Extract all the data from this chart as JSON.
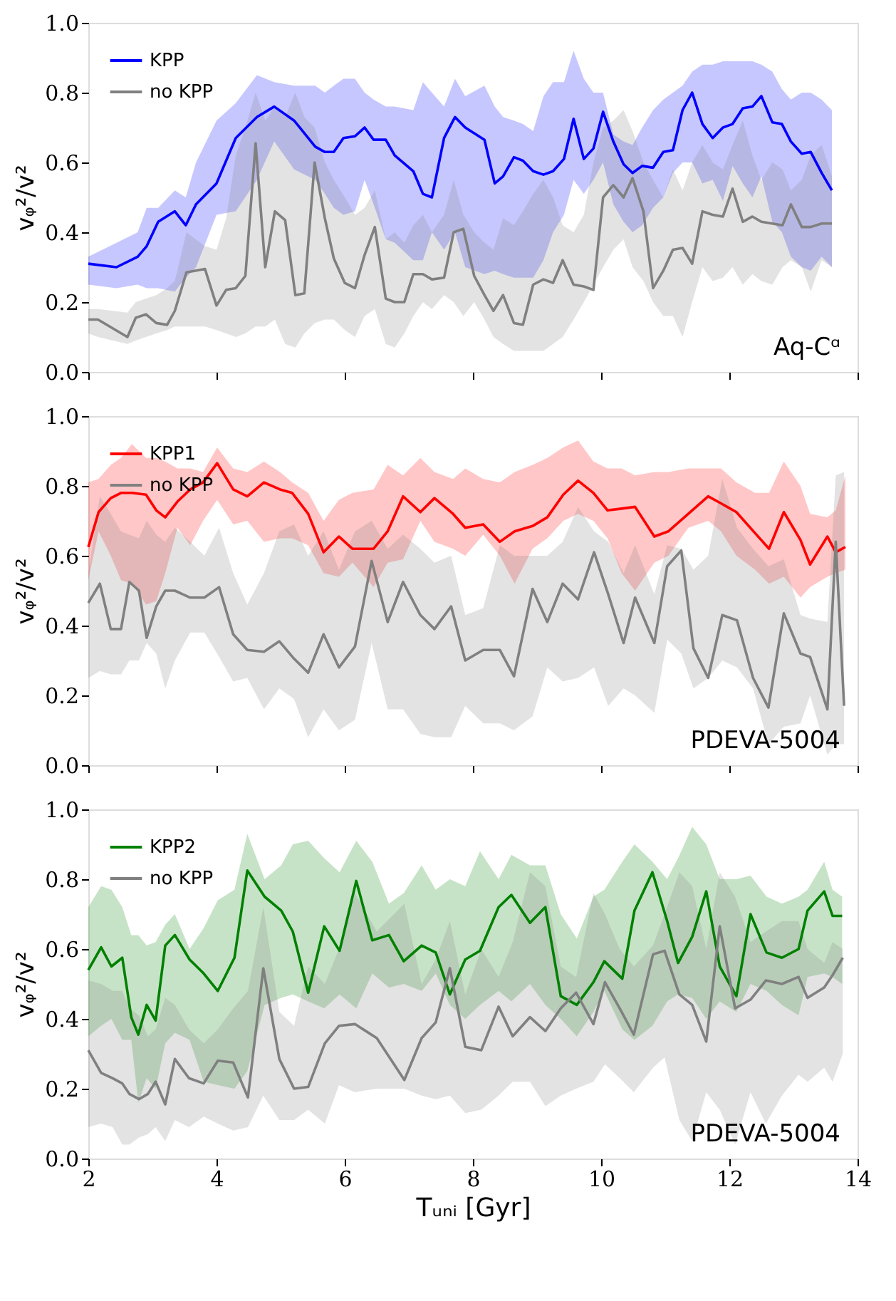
{
  "chart_data": [
    {
      "type": "line",
      "ylabel": "vᵩ²/v²",
      "xlim": [
        2,
        14
      ],
      "xticks": [
        2,
        4,
        6,
        8,
        10,
        12,
        14
      ],
      "ylim": [
        0,
        1
      ],
      "yticks": [
        {
          "value": 0,
          "label": "0.0"
        },
        {
          "value": 0.2,
          "label": "0.2"
        },
        {
          "value": 0.4,
          "label": "0.4"
        },
        {
          "value": 0.6,
          "label": "0.6"
        },
        {
          "value": 0.8,
          "label": "0.8"
        },
        {
          "value": 1,
          "label": "1.0"
        }
      ],
      "tick_labels": "y",
      "grid": false,
      "legend": "top left",
      "annotations": [
        "Aq-Cᵅ"
      ],
      "series": [
        {
          "name": "KPP",
          "color": "#0000ff",
          "x": [
            2.0,
            2.44,
            2.77,
            2.91,
            3.09,
            3.35,
            3.52,
            3.68,
            4.0,
            4.3,
            4.63,
            4.9,
            5.21,
            5.54,
            5.69,
            5.83,
            5.98,
            6.16,
            6.31,
            6.45,
            6.64,
            6.78,
            7.07,
            7.22,
            7.36,
            7.55,
            7.72,
            7.88,
            8.18,
            8.34,
            8.47,
            8.64,
            8.78,
            8.94,
            9.1,
            9.25,
            9.42,
            9.57,
            9.73,
            9.88,
            10.03,
            10.19,
            10.35,
            10.49,
            10.64,
            10.81,
            10.97,
            11.12,
            11.27,
            11.42,
            11.58,
            11.74,
            11.9,
            12.05,
            12.21,
            12.36,
            12.5,
            12.67,
            12.82,
            12.96,
            13.13,
            13.27,
            13.44,
            13.6
          ],
          "values": [
            0.31,
            0.3,
            0.33,
            0.36,
            0.43,
            0.46,
            0.42,
            0.48,
            0.54,
            0.67,
            0.73,
            0.76,
            0.72,
            0.645,
            0.63,
            0.63,
            0.67,
            0.675,
            0.7,
            0.665,
            0.665,
            0.62,
            0.575,
            0.51,
            0.5,
            0.67,
            0.73,
            0.7,
            0.665,
            0.54,
            0.56,
            0.615,
            0.605,
            0.575,
            0.565,
            0.575,
            0.61,
            0.725,
            0.61,
            0.64,
            0.745,
            0.66,
            0.595,
            0.57,
            0.59,
            0.585,
            0.63,
            0.635,
            0.75,
            0.8,
            0.71,
            0.67,
            0.7,
            0.71,
            0.755,
            0.76,
            0.79,
            0.715,
            0.71,
            0.66,
            0.625,
            0.63,
            0.57,
            0.52
          ],
          "upper": [
            0.33,
            0.37,
            0.4,
            0.47,
            0.47,
            0.52,
            0.5,
            0.6,
            0.72,
            0.77,
            0.85,
            0.83,
            0.82,
            0.82,
            0.8,
            0.82,
            0.84,
            0.84,
            0.8,
            0.78,
            0.76,
            0.76,
            0.75,
            0.83,
            0.8,
            0.76,
            0.84,
            0.79,
            0.82,
            0.76,
            0.73,
            0.72,
            0.71,
            0.69,
            0.79,
            0.83,
            0.83,
            0.92,
            0.84,
            0.8,
            0.8,
            0.68,
            0.66,
            0.65,
            0.7,
            0.75,
            0.78,
            0.8,
            0.82,
            0.86,
            0.88,
            0.88,
            0.89,
            0.89,
            0.89,
            0.89,
            0.88,
            0.86,
            0.81,
            0.78,
            0.8,
            0.8,
            0.78,
            0.75
          ],
          "lower": [
            0.25,
            0.24,
            0.25,
            0.24,
            0.24,
            0.23,
            0.27,
            0.3,
            0.45,
            0.46,
            0.55,
            0.66,
            0.58,
            0.55,
            0.51,
            0.47,
            0.45,
            0.46,
            0.55,
            0.48,
            0.38,
            0.37,
            0.32,
            0.32,
            0.4,
            0.35,
            0.4,
            0.3,
            0.28,
            0.29,
            0.28,
            0.27,
            0.27,
            0.27,
            0.32,
            0.4,
            0.45,
            0.55,
            0.51,
            0.55,
            0.6,
            0.48,
            0.43,
            0.4,
            0.42,
            0.47,
            0.5,
            0.57,
            0.6,
            0.6,
            0.54,
            0.55,
            0.49,
            0.59,
            0.54,
            0.5,
            0.56,
            0.43,
            0.4,
            0.33,
            0.3,
            0.29,
            0.33,
            0.3
          ]
        },
        {
          "name": "no KPP",
          "color": "#808080",
          "x": [
            2.0,
            2.15,
            2.61,
            2.74,
            2.9,
            3.06,
            3.23,
            3.35,
            3.53,
            3.82,
            4.0,
            4.15,
            4.3,
            4.45,
            4.61,
            4.76,
            4.91,
            5.07,
            5.23,
            5.37,
            5.53,
            5.69,
            5.83,
            6.0,
            6.16,
            6.31,
            6.47,
            6.64,
            6.78,
            6.93,
            7.07,
            7.22,
            7.36,
            7.55,
            7.7,
            7.85,
            8.02,
            8.18,
            8.32,
            8.47,
            8.64,
            8.78,
            8.94,
            9.1,
            9.25,
            9.4,
            9.57,
            9.73,
            9.88,
            10.03,
            10.19,
            10.35,
            10.49,
            10.66,
            10.81,
            10.97,
            11.12,
            11.27,
            11.42,
            11.58,
            11.74,
            11.9,
            12.05,
            12.21,
            12.36,
            12.5,
            12.67,
            12.83,
            12.96,
            13.13,
            13.27,
            13.44,
            13.6
          ],
          "values": [
            0.15,
            0.15,
            0.1,
            0.155,
            0.165,
            0.14,
            0.135,
            0.175,
            0.285,
            0.295,
            0.19,
            0.235,
            0.24,
            0.275,
            0.655,
            0.3,
            0.46,
            0.435,
            0.22,
            0.225,
            0.6,
            0.44,
            0.325,
            0.255,
            0.24,
            0.335,
            0.415,
            0.21,
            0.2,
            0.2,
            0.28,
            0.28,
            0.265,
            0.27,
            0.4,
            0.41,
            0.275,
            0.22,
            0.175,
            0.22,
            0.14,
            0.135,
            0.25,
            0.265,
            0.255,
            0.32,
            0.25,
            0.245,
            0.235,
            0.5,
            0.535,
            0.5,
            0.555,
            0.46,
            0.24,
            0.29,
            0.35,
            0.355,
            0.31,
            0.46,
            0.45,
            0.445,
            0.525,
            0.43,
            0.445,
            0.43,
            0.425,
            0.42,
            0.48,
            0.415,
            0.415,
            0.425,
            0.425
          ],
          "upper": [
            0.18,
            0.18,
            0.17,
            0.2,
            0.21,
            0.22,
            0.24,
            0.26,
            0.4,
            0.36,
            0.35,
            0.44,
            0.62,
            0.7,
            0.8,
            0.72,
            0.76,
            0.73,
            0.8,
            0.73,
            0.7,
            0.6,
            0.55,
            0.5,
            0.45,
            0.47,
            0.52,
            0.38,
            0.4,
            0.37,
            0.42,
            0.45,
            0.4,
            0.45,
            0.55,
            0.45,
            0.4,
            0.37,
            0.35,
            0.44,
            0.42,
            0.46,
            0.51,
            0.55,
            0.5,
            0.42,
            0.4,
            0.45,
            0.6,
            0.7,
            0.72,
            0.75,
            0.69,
            0.6,
            0.55,
            0.5,
            0.58,
            0.52,
            0.6,
            0.65,
            0.6,
            0.58,
            0.65,
            0.72,
            0.62,
            0.55,
            0.6,
            0.58,
            0.52,
            0.55,
            0.62,
            0.65,
            0.56
          ],
          "lower": [
            0.11,
            0.1,
            0.08,
            0.09,
            0.1,
            0.11,
            0.12,
            0.13,
            0.13,
            0.13,
            0.12,
            0.11,
            0.1,
            0.11,
            0.13,
            0.13,
            0.15,
            0.08,
            0.07,
            0.11,
            0.14,
            0.15,
            0.15,
            0.12,
            0.1,
            0.16,
            0.18,
            0.08,
            0.07,
            0.11,
            0.16,
            0.2,
            0.18,
            0.22,
            0.2,
            0.16,
            0.2,
            0.15,
            0.1,
            0.08,
            0.06,
            0.06,
            0.06,
            0.06,
            0.08,
            0.1,
            0.15,
            0.2,
            0.25,
            0.3,
            0.35,
            0.38,
            0.3,
            0.26,
            0.2,
            0.16,
            0.16,
            0.1,
            0.2,
            0.3,
            0.26,
            0.27,
            0.3,
            0.25,
            0.28,
            0.26,
            0.25,
            0.3,
            0.32,
            0.3,
            0.23,
            0.32,
            0.3
          ]
        }
      ]
    },
    {
      "type": "line",
      "ylabel": "vᵩ²/v²",
      "xlim": [
        2,
        14
      ],
      "xticks": [
        2,
        4,
        6,
        8,
        10,
        12,
        14
      ],
      "ylim": [
        0,
        1
      ],
      "yticks": [
        {
          "value": 0,
          "label": "0.0"
        },
        {
          "value": 0.2,
          "label": "0.2"
        },
        {
          "value": 0.4,
          "label": "0.4"
        },
        {
          "value": 0.6,
          "label": "0.6"
        },
        {
          "value": 0.8,
          "label": "0.8"
        },
        {
          "value": 1,
          "label": "1.0"
        }
      ],
      "tick_labels": "y",
      "grid": false,
      "legend": "top left",
      "annotations": [
        "PDEVA-5004"
      ],
      "series": [
        {
          "name": "KPP1",
          "color": "#ff0000",
          "x": [
            2.0,
            2.16,
            2.35,
            2.51,
            2.68,
            2.9,
            3.06,
            3.2,
            3.39,
            3.59,
            3.79,
            4.01,
            4.26,
            4.48,
            4.74,
            4.99,
            5.18,
            5.43,
            5.67,
            5.91,
            6.12,
            6.45,
            6.67,
            6.91,
            7.18,
            7.4,
            7.69,
            7.88,
            8.16,
            8.42,
            8.65,
            8.93,
            9.16,
            9.41,
            9.64,
            9.88,
            10.1,
            10.32,
            10.53,
            10.83,
            11.05,
            11.36,
            11.67,
            11.87,
            12.11,
            12.4,
            12.62,
            12.85,
            13.11,
            13.26,
            13.53,
            13.66,
            13.81
          ],
          "values": [
            0.625,
            0.725,
            0.765,
            0.78,
            0.78,
            0.775,
            0.73,
            0.71,
            0.755,
            0.79,
            0.81,
            0.865,
            0.79,
            0.77,
            0.81,
            0.79,
            0.78,
            0.72,
            0.61,
            0.655,
            0.62,
            0.62,
            0.67,
            0.77,
            0.725,
            0.765,
            0.72,
            0.68,
            0.69,
            0.64,
            0.67,
            0.685,
            0.71,
            0.775,
            0.815,
            0.78,
            0.73,
            0.735,
            0.74,
            0.655,
            0.67,
            0.72,
            0.77,
            0.75,
            0.725,
            0.665,
            0.62,
            0.725,
            0.645,
            0.575,
            0.655,
            0.61,
            0.625
          ],
          "upper": [
            0.81,
            0.82,
            0.86,
            0.88,
            0.92,
            0.88,
            0.88,
            0.87,
            0.85,
            0.85,
            0.84,
            0.91,
            0.85,
            0.84,
            0.87,
            0.84,
            0.81,
            0.78,
            0.7,
            0.76,
            0.78,
            0.79,
            0.86,
            0.83,
            0.88,
            0.84,
            0.82,
            0.85,
            0.82,
            0.81,
            0.84,
            0.86,
            0.88,
            0.91,
            0.93,
            0.87,
            0.85,
            0.85,
            0.83,
            0.84,
            0.84,
            0.85,
            0.85,
            0.85,
            0.81,
            0.78,
            0.78,
            0.87,
            0.8,
            0.72,
            0.71,
            0.73,
            0.83
          ],
          "lower": [
            0.53,
            0.67,
            0.6,
            0.53,
            0.52,
            0.46,
            0.47,
            0.55,
            0.68,
            0.63,
            0.7,
            0.76,
            0.69,
            0.7,
            0.64,
            0.65,
            0.65,
            0.63,
            0.55,
            0.54,
            0.58,
            0.51,
            0.58,
            0.59,
            0.7,
            0.64,
            0.62,
            0.6,
            0.66,
            0.6,
            0.52,
            0.62,
            0.65,
            0.7,
            0.72,
            0.7,
            0.65,
            0.55,
            0.5,
            0.58,
            0.6,
            0.68,
            0.7,
            0.67,
            0.6,
            0.56,
            0.52,
            0.54,
            0.48,
            0.51,
            0.54,
            0.55,
            0.56
          ]
        },
        {
          "name": "no KPP",
          "color": "#808080",
          "x": [
            2.0,
            2.18,
            2.35,
            2.51,
            2.64,
            2.79,
            2.91,
            3.06,
            3.2,
            3.35,
            3.59,
            3.81,
            4.04,
            4.26,
            4.48,
            4.74,
            4.98,
            5.21,
            5.43,
            5.67,
            5.91,
            6.16,
            6.42,
            6.67,
            6.91,
            7.18,
            7.4,
            7.66,
            7.88,
            8.16,
            8.42,
            8.64,
            8.93,
            9.16,
            9.4,
            9.64,
            9.89,
            10.11,
            10.35,
            10.53,
            10.83,
            11.03,
            11.25,
            11.44,
            11.67,
            11.89,
            12.12,
            12.37,
            12.61,
            12.85,
            13.11,
            13.26,
            13.53,
            13.66,
            13.79
          ],
          "values": [
            0.465,
            0.52,
            0.39,
            0.39,
            0.525,
            0.5,
            0.365,
            0.455,
            0.5,
            0.5,
            0.48,
            0.48,
            0.51,
            0.375,
            0.33,
            0.325,
            0.355,
            0.305,
            0.265,
            0.375,
            0.28,
            0.34,
            0.585,
            0.41,
            0.525,
            0.43,
            0.39,
            0.455,
            0.3,
            0.33,
            0.33,
            0.255,
            0.505,
            0.41,
            0.52,
            0.475,
            0.61,
            0.49,
            0.35,
            0.48,
            0.35,
            0.57,
            0.615,
            0.335,
            0.25,
            0.43,
            0.415,
            0.25,
            0.165,
            0.435,
            0.32,
            0.31,
            0.16,
            0.64,
            0.17
          ],
          "upper": [
            0.55,
            0.77,
            0.72,
            0.67,
            0.66,
            0.65,
            0.7,
            0.66,
            0.64,
            0.68,
            0.64,
            0.6,
            0.68,
            0.55,
            0.46,
            0.55,
            0.67,
            0.69,
            0.6,
            0.67,
            0.56,
            0.67,
            0.7,
            0.62,
            0.66,
            0.62,
            0.58,
            0.6,
            0.43,
            0.45,
            0.63,
            0.6,
            0.6,
            0.6,
            0.64,
            0.74,
            0.67,
            0.64,
            0.55,
            0.63,
            0.49,
            0.63,
            0.62,
            0.56,
            0.6,
            0.82,
            0.68,
            0.62,
            0.57,
            0.59,
            0.43,
            0.42,
            0.41,
            0.83,
            0.84
          ],
          "lower": [
            0.25,
            0.27,
            0.26,
            0.26,
            0.3,
            0.3,
            0.35,
            0.32,
            0.22,
            0.3,
            0.38,
            0.38,
            0.31,
            0.24,
            0.25,
            0.16,
            0.22,
            0.19,
            0.08,
            0.16,
            0.1,
            0.13,
            0.35,
            0.16,
            0.16,
            0.09,
            0.08,
            0.08,
            0.17,
            0.12,
            0.12,
            0.1,
            0.14,
            0.28,
            0.24,
            0.25,
            0.28,
            0.17,
            0.22,
            0.2,
            0.15,
            0.36,
            0.32,
            0.22,
            0.25,
            0.3,
            0.28,
            0.22,
            0.06,
            0.11,
            0.12,
            0.2,
            0.03,
            0.06,
            0.06
          ]
        }
      ]
    },
    {
      "type": "line",
      "ylabel": "vᵩ²/v²",
      "xlabel": "Tᵤₙᵢ [Gyr]",
      "xlim": [
        2,
        14
      ],
      "xticks": [
        2,
        4,
        6,
        8,
        10,
        12,
        14
      ],
      "ylim": [
        0,
        1
      ],
      "yticks": [
        {
          "value": 0,
          "label": "0.0"
        },
        {
          "value": 0.2,
          "label": "0.2"
        },
        {
          "value": 0.4,
          "label": "0.4"
        },
        {
          "value": 0.6,
          "label": "0.6"
        },
        {
          "value": 0.8,
          "label": "0.8"
        },
        {
          "value": 1,
          "label": "1.0"
        }
      ],
      "grid": false,
      "legend": "top left",
      "annotations": [
        "PDEVA-5004"
      ],
      "series": [
        {
          "name": "KPP2",
          "color": "#008000",
          "x": [
            2.0,
            2.2,
            2.36,
            2.53,
            2.67,
            2.78,
            2.91,
            3.05,
            3.2,
            3.35,
            3.58,
            3.8,
            4.02,
            4.28,
            4.48,
            4.75,
            5.01,
            5.19,
            5.43,
            5.68,
            5.92,
            6.18,
            6.43,
            6.69,
            6.92,
            7.2,
            7.42,
            7.64,
            7.88,
            8.11,
            8.4,
            8.6,
            8.89,
            9.13,
            9.37,
            9.62,
            9.88,
            10.05,
            10.33,
            10.52,
            10.8,
            11.03,
            11.2,
            11.42,
            11.64,
            11.85,
            12.11,
            12.33,
            12.58,
            12.82,
            13.08,
            13.22,
            13.48,
            13.61,
            13.76
          ],
          "values": [
            0.54,
            0.605,
            0.55,
            0.575,
            0.405,
            0.355,
            0.44,
            0.395,
            0.61,
            0.64,
            0.57,
            0.53,
            0.48,
            0.575,
            0.825,
            0.75,
            0.71,
            0.65,
            0.475,
            0.665,
            0.595,
            0.795,
            0.625,
            0.64,
            0.565,
            0.61,
            0.59,
            0.47,
            0.57,
            0.595,
            0.72,
            0.755,
            0.675,
            0.72,
            0.465,
            0.44,
            0.505,
            0.565,
            0.515,
            0.71,
            0.82,
            0.68,
            0.56,
            0.635,
            0.765,
            0.55,
            0.465,
            0.7,
            0.59,
            0.575,
            0.6,
            0.71,
            0.765,
            0.695,
            0.695
          ],
          "upper": [
            0.72,
            0.78,
            0.77,
            0.72,
            0.64,
            0.64,
            0.61,
            0.62,
            0.67,
            0.7,
            0.6,
            0.66,
            0.74,
            0.77,
            0.93,
            0.8,
            0.84,
            0.9,
            0.91,
            0.86,
            0.82,
            0.91,
            0.85,
            0.73,
            0.76,
            0.84,
            0.77,
            0.8,
            0.78,
            0.88,
            0.8,
            0.87,
            0.84,
            0.84,
            0.7,
            0.63,
            0.75,
            0.77,
            0.85,
            0.9,
            0.85,
            0.8,
            0.86,
            0.95,
            0.9,
            0.8,
            0.8,
            0.81,
            0.75,
            0.73,
            0.75,
            0.77,
            0.85,
            0.77,
            0.75
          ],
          "lower": [
            0.35,
            0.38,
            0.4,
            0.34,
            0.34,
            0.16,
            0.23,
            0.2,
            0.33,
            0.36,
            0.34,
            0.22,
            0.21,
            0.2,
            0.25,
            0.44,
            0.46,
            0.47,
            0.45,
            0.43,
            0.47,
            0.43,
            0.53,
            0.49,
            0.5,
            0.48,
            0.53,
            0.44,
            0.4,
            0.44,
            0.48,
            0.45,
            0.5,
            0.44,
            0.4,
            0.35,
            0.42,
            0.48,
            0.37,
            0.34,
            0.38,
            0.45,
            0.47,
            0.46,
            0.4,
            0.45,
            0.42,
            0.5,
            0.48,
            0.44,
            0.41,
            0.52,
            0.53,
            0.52,
            0.5
          ]
        },
        {
          "name": "no KPP",
          "color": "#808080",
          "x": [
            2.0,
            2.2,
            2.38,
            2.53,
            2.64,
            2.79,
            2.93,
            3.05,
            3.2,
            3.35,
            3.57,
            3.8,
            4.02,
            4.26,
            4.49,
            4.73,
            4.98,
            5.21,
            5.43,
            5.69,
            5.91,
            6.16,
            6.5,
            6.93,
            7.2,
            7.42,
            7.64,
            7.88,
            8.13,
            8.4,
            8.62,
            8.89,
            9.13,
            9.37,
            9.61,
            9.88,
            10.06,
            10.29,
            10.51,
            10.81,
            10.99,
            11.22,
            11.42,
            11.64,
            11.85,
            12.09,
            12.33,
            12.57,
            12.82,
            13.08,
            13.22,
            13.48,
            13.61,
            13.77
          ],
          "values": [
            0.31,
            0.245,
            0.23,
            0.215,
            0.185,
            0.17,
            0.185,
            0.22,
            0.155,
            0.285,
            0.23,
            0.215,
            0.28,
            0.275,
            0.175,
            0.545,
            0.285,
            0.2,
            0.205,
            0.33,
            0.38,
            0.385,
            0.345,
            0.225,
            0.345,
            0.39,
            0.545,
            0.32,
            0.31,
            0.435,
            0.35,
            0.405,
            0.365,
            0.43,
            0.475,
            0.385,
            0.505,
            0.43,
            0.355,
            0.585,
            0.595,
            0.47,
            0.44,
            0.335,
            0.665,
            0.43,
            0.455,
            0.51,
            0.5,
            0.52,
            0.46,
            0.49,
            0.525,
            0.575
          ],
          "upper": [
            0.51,
            0.5,
            0.48,
            0.48,
            0.43,
            0.41,
            0.35,
            0.37,
            0.46,
            0.44,
            0.37,
            0.33,
            0.37,
            0.43,
            0.48,
            0.72,
            0.42,
            0.38,
            0.55,
            0.5,
            0.6,
            0.76,
            0.65,
            0.73,
            0.5,
            0.57,
            0.68,
            0.47,
            0.6,
            0.52,
            0.62,
            0.82,
            0.78,
            0.55,
            0.52,
            0.76,
            0.7,
            0.6,
            0.55,
            0.61,
            0.7,
            0.82,
            0.78,
            0.6,
            0.82,
            0.75,
            0.62,
            0.65,
            0.68,
            0.68,
            0.6,
            0.56,
            0.62,
            0.6
          ],
          "lower": [
            0.09,
            0.1,
            0.09,
            0.04,
            0.04,
            0.06,
            0.07,
            0.09,
            0.05,
            0.11,
            0.09,
            0.12,
            0.1,
            0.08,
            0.09,
            0.18,
            0.11,
            0.11,
            0.14,
            0.1,
            0.21,
            0.19,
            0.2,
            0.2,
            0.18,
            0.17,
            0.18,
            0.13,
            0.14,
            0.18,
            0.22,
            0.22,
            0.15,
            0.18,
            0.2,
            0.22,
            0.27,
            0.23,
            0.19,
            0.26,
            0.29,
            0.11,
            0.05,
            0.19,
            0.14,
            0.04,
            0.19,
            0.1,
            0.18,
            0.24,
            0.22,
            0.26,
            0.22,
            0.3
          ]
        }
      ]
    }
  ]
}
